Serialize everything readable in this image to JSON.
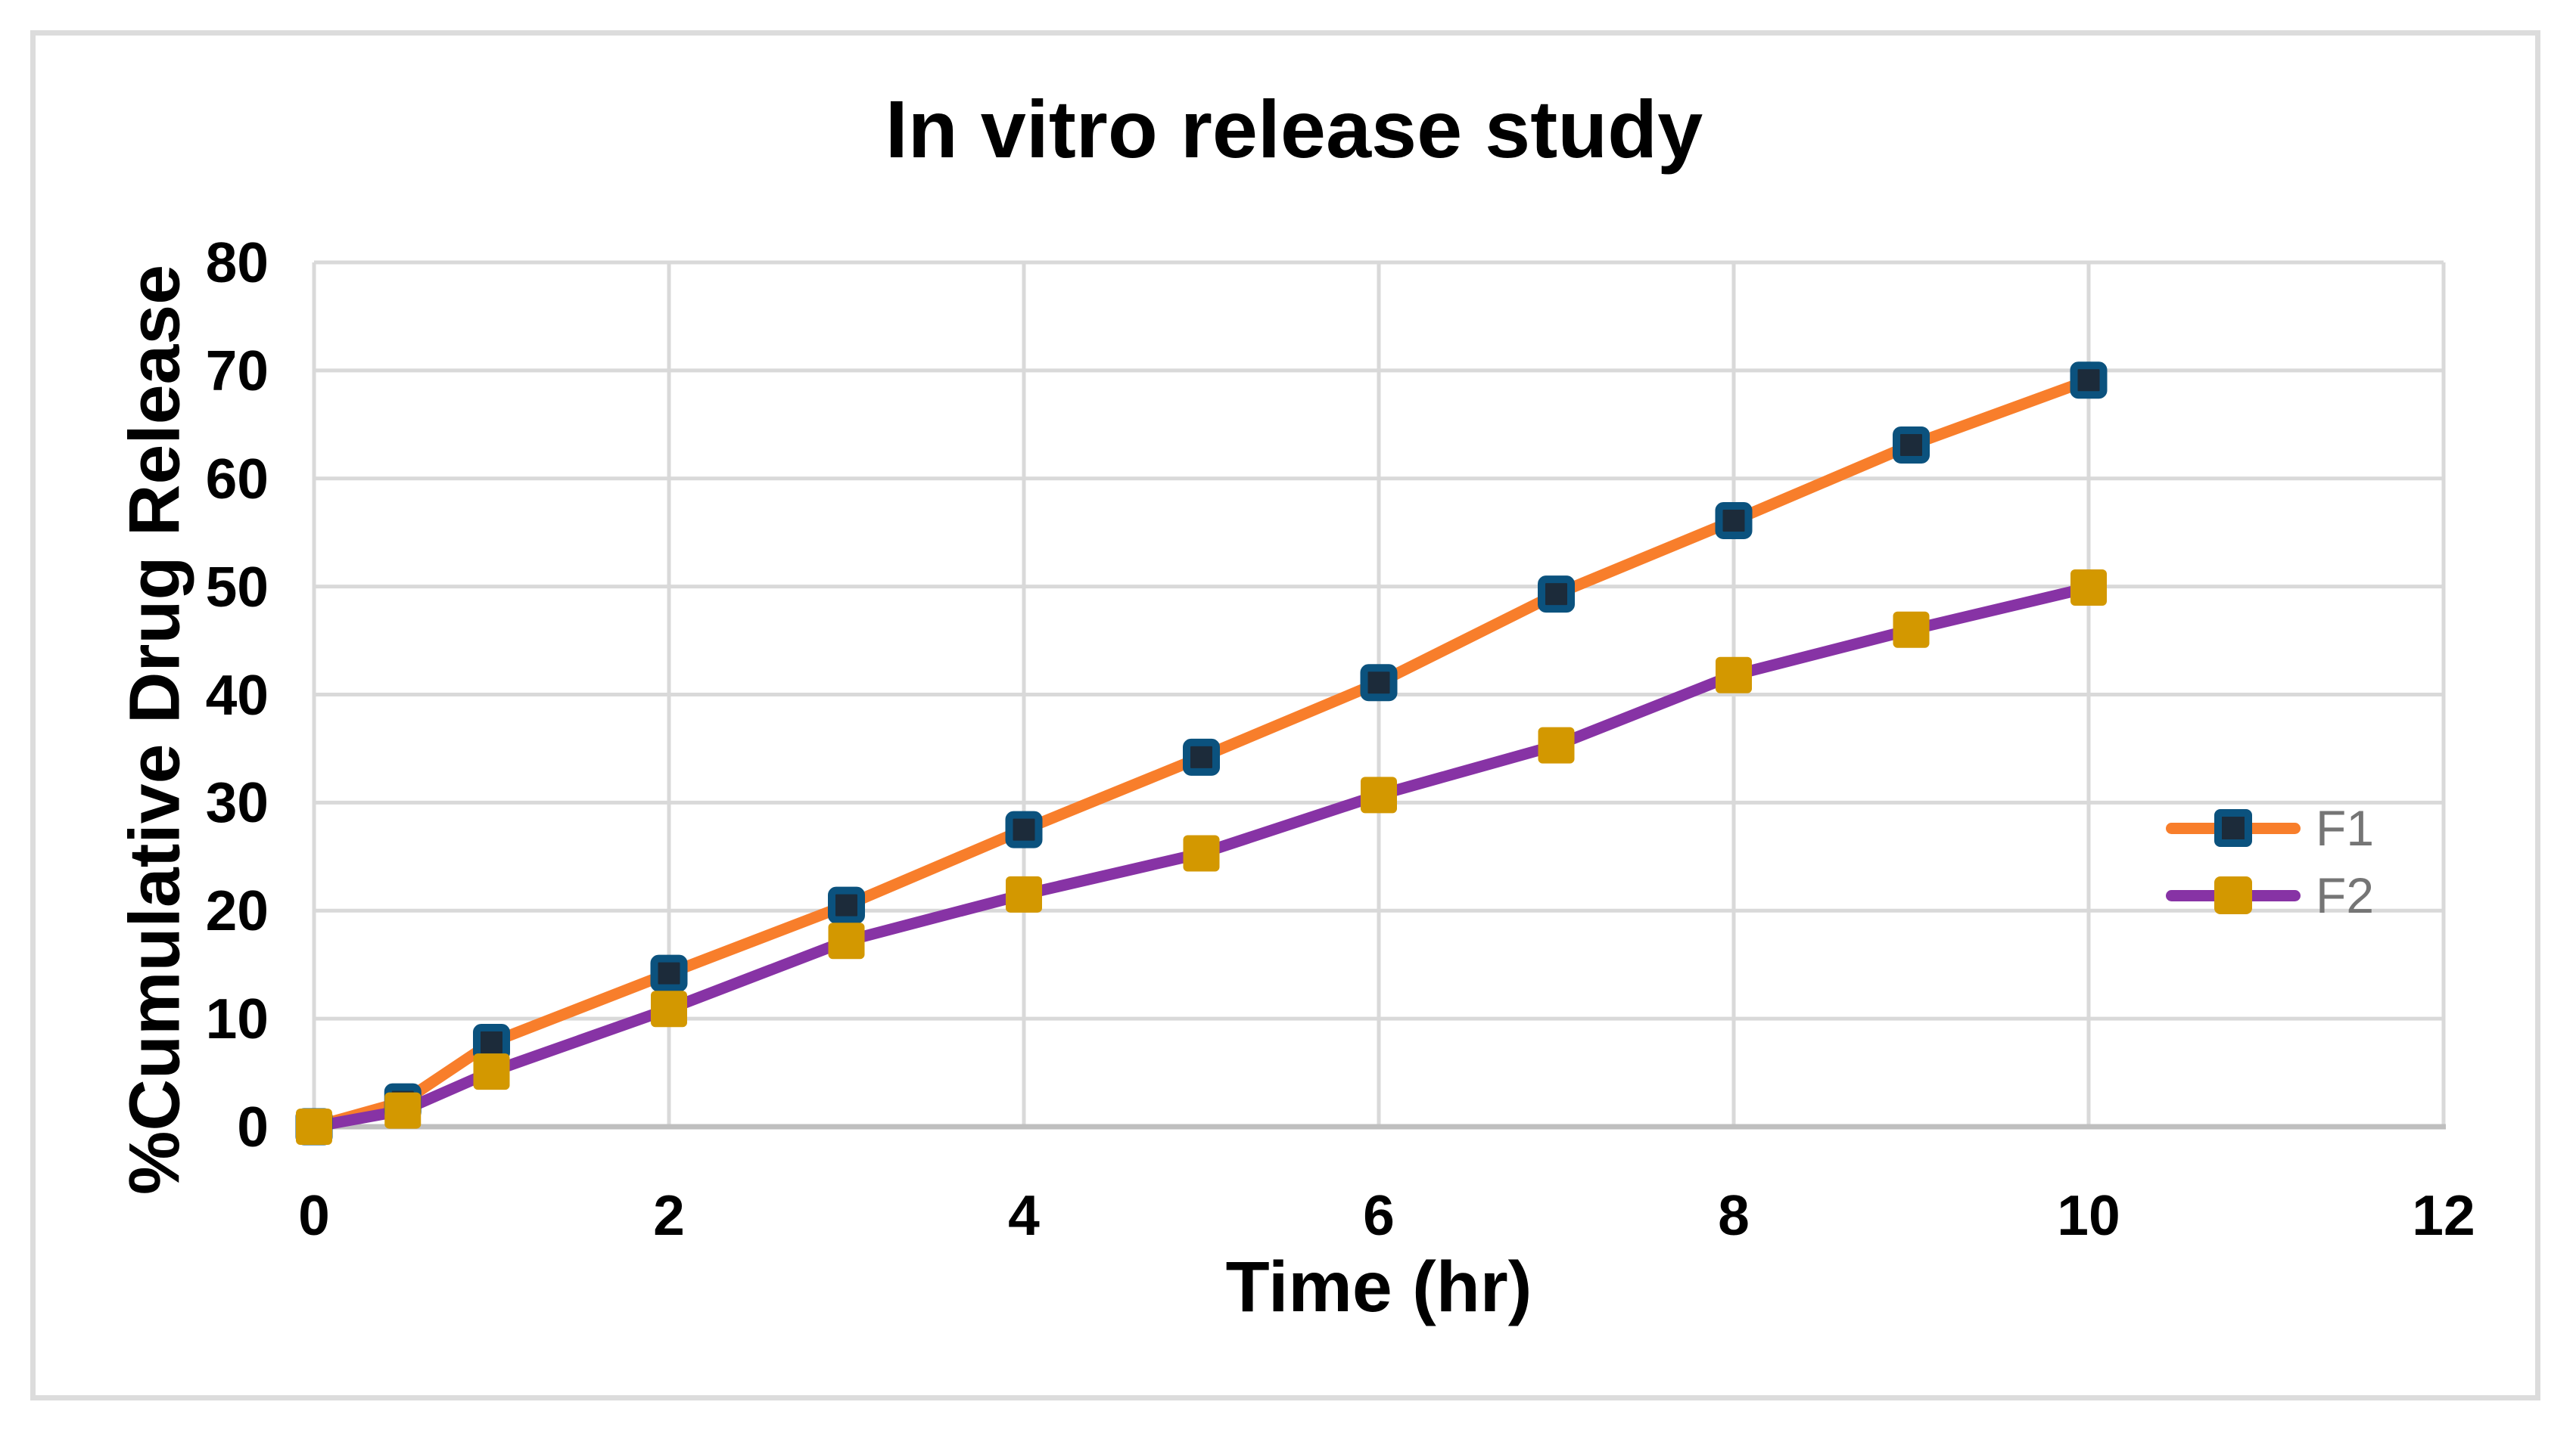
{
  "title": "In vitro release study",
  "chart_data": {
    "type": "line",
    "title": "In vitro release study",
    "xlabel": "Time (hr)",
    "ylabel": "%Cumulative Drug Release",
    "x": [
      0,
      0.5,
      1,
      2,
      3,
      4,
      5,
      6,
      7,
      8,
      9,
      10
    ],
    "series": [
      {
        "name": "F1",
        "values": [
          0,
          2.3,
          7.8,
          14.2,
          20.5,
          27.5,
          34.2,
          41.1,
          49.3,
          56.1,
          63.1,
          69.1
        ],
        "line_color": "#F87E2B",
        "marker": "square",
        "marker_fill": "#1C2B3A",
        "marker_border": "#0B527E"
      },
      {
        "name": "F2",
        "values": [
          0,
          1.5,
          5.1,
          10.9,
          17.2,
          21.5,
          25.3,
          30.7,
          35.3,
          41.8,
          46.0,
          49.9
        ],
        "line_color": "#8733A5",
        "marker": "square",
        "marker_fill": "#D39800",
        "marker_border": "#D39800"
      }
    ],
    "xlim": [
      0,
      12
    ],
    "ylim": [
      0,
      80
    ],
    "x_ticks": [
      0,
      2,
      4,
      6,
      8,
      10,
      12
    ],
    "y_ticks": [
      0,
      10,
      20,
      30,
      40,
      50,
      60,
      70,
      80
    ],
    "grid": true,
    "legend_position": "middle-right"
  },
  "colors": {
    "gridline": "#D9D9D9",
    "axis_line": "#BFBFBF",
    "figure_border": "#DCDCDC",
    "title_text": "#000000",
    "legend_text": "#757575",
    "background": "#FFFFFF"
  }
}
